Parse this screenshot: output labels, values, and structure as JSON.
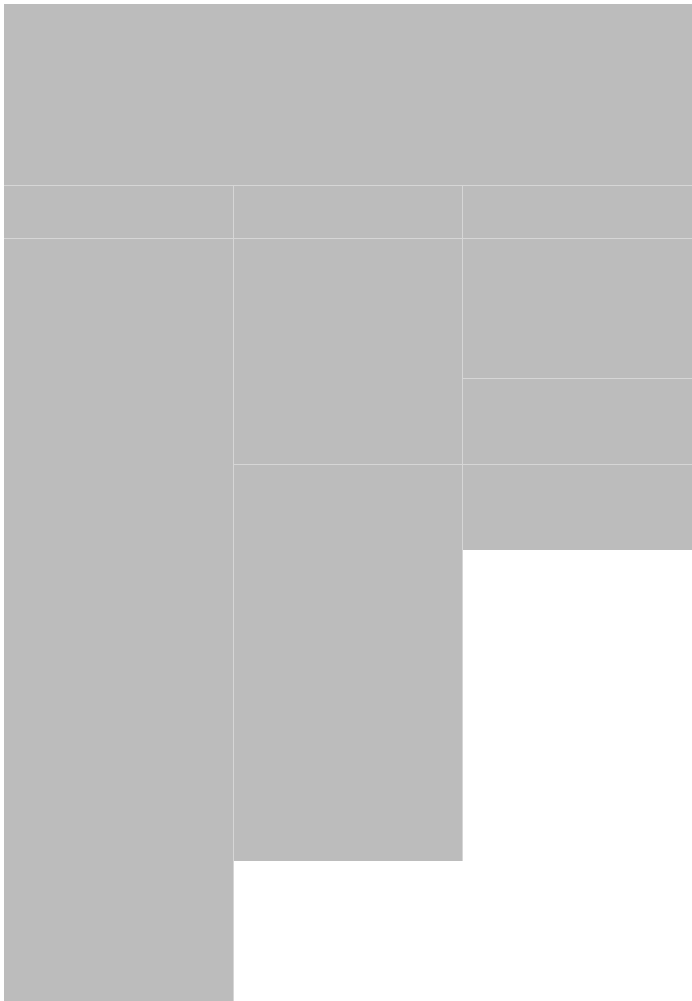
{
  "page": {
    "background": "#ffffff",
    "placeholder_fill": "#bcbcbc",
    "divider_color": "#d6d6d6"
  },
  "header": {},
  "columns": [
    {
      "header": {},
      "tiles": [
        {}
      ]
    },
    {
      "header": {},
      "tiles": [
        {},
        {}
      ]
    },
    {
      "header": {},
      "tiles": [
        {},
        {},
        {}
      ]
    }
  ]
}
